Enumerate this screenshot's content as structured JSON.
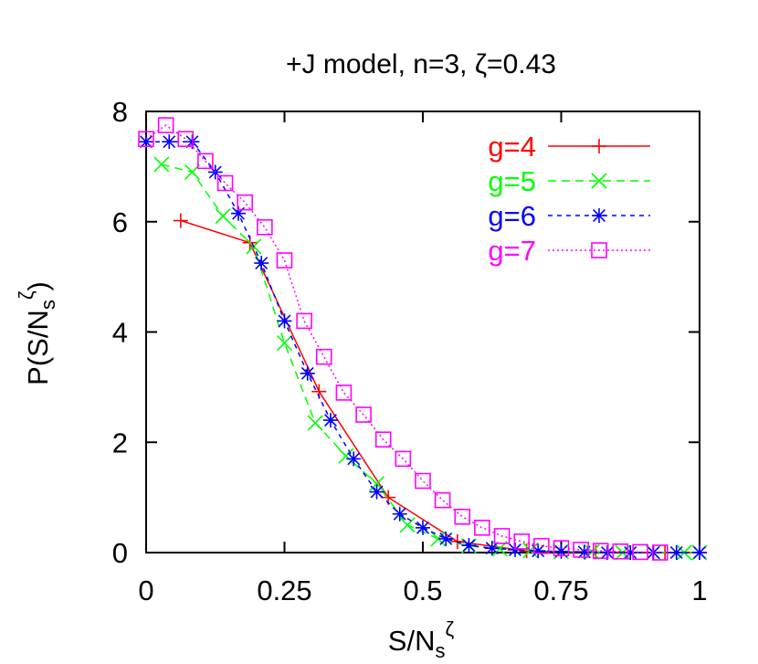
{
  "chart_data": {
    "type": "line",
    "title": "+J model, n=3, ζ=0.43",
    "xlabel": {
      "base": "S/N",
      "sub": "s",
      "sup": "ζ"
    },
    "ylabel": {
      "base": "P(S/N",
      "sub": "s",
      "sup": "ζ",
      "close": ")"
    },
    "xlim": [
      0,
      1
    ],
    "ylim": [
      0,
      8
    ],
    "xticks": [
      0,
      0.25,
      0.5,
      0.75,
      1
    ],
    "xtick_labels": [
      "0",
      "0.25",
      "0.5",
      "0.75",
      "1"
    ],
    "yticks": [
      0,
      2,
      4,
      6,
      8
    ],
    "ytick_labels": [
      "0",
      "2",
      "4",
      "6",
      "8"
    ],
    "grid": false,
    "legend_position": "top-right",
    "series": [
      {
        "name": "g=4",
        "color": "#ff0000",
        "dash": "solid",
        "marker": "plus",
        "x": [
          0.0625,
          0.1875,
          0.3125,
          0.4375,
          0.5625,
          0.6875,
          0.8125,
          0.9375,
          1.0
        ],
        "y": [
          6.02,
          5.62,
          2.92,
          1.0,
          0.2,
          0.03,
          0.01,
          0.0,
          0.0
        ]
      },
      {
        "name": "g=5",
        "color": "#00ff00",
        "dash": "dashed",
        "marker": "x",
        "x": [
          0.0278,
          0.0833,
          0.1389,
          0.1944,
          0.25,
          0.3056,
          0.3611,
          0.4167,
          0.4722,
          0.5278,
          0.5833,
          0.6389,
          0.6944,
          0.75,
          0.8056,
          0.8611,
          0.9167,
          0.9722,
          1.0
        ],
        "y": [
          7.04,
          6.9,
          6.1,
          5.55,
          3.8,
          2.35,
          1.75,
          1.25,
          0.5,
          0.25,
          0.12,
          0.07,
          0.04,
          0.02,
          0.01,
          0.0,
          0.0,
          0.0,
          0.0
        ]
      },
      {
        "name": "g=6",
        "color": "#0000ff",
        "dash": "shortdash",
        "marker": "star",
        "x": [
          0.0,
          0.0417,
          0.0833,
          0.125,
          0.1667,
          0.2083,
          0.25,
          0.2917,
          0.3333,
          0.375,
          0.4167,
          0.4583,
          0.5,
          0.5417,
          0.5833,
          0.625,
          0.6667,
          0.7083,
          0.75,
          0.7917,
          0.8333,
          0.875,
          0.9167,
          0.9583,
          1.0
        ],
        "y": [
          7.45,
          7.45,
          7.45,
          6.9,
          6.15,
          5.25,
          4.2,
          3.25,
          2.4,
          1.7,
          1.1,
          0.7,
          0.45,
          0.25,
          0.13,
          0.08,
          0.05,
          0.03,
          0.02,
          0.01,
          0.0,
          0.0,
          0.0,
          0.0,
          0.0
        ]
      },
      {
        "name": "g=7",
        "color": "#ff00ff",
        "dash": "dotted",
        "marker": "square",
        "x": [
          0.0,
          0.0357,
          0.0714,
          0.1071,
          0.1429,
          0.1786,
          0.2143,
          0.25,
          0.2857,
          0.3214,
          0.3571,
          0.3929,
          0.4286,
          0.4643,
          0.5,
          0.5357,
          0.5714,
          0.6071,
          0.6429,
          0.6786,
          0.7143,
          0.75,
          0.7857,
          0.8214,
          0.8571,
          0.8929,
          0.9286
        ],
        "y": [
          7.5,
          7.75,
          7.5,
          7.1,
          6.7,
          6.35,
          5.9,
          5.3,
          4.2,
          3.55,
          2.9,
          2.5,
          2.05,
          1.7,
          1.3,
          0.95,
          0.65,
          0.45,
          0.3,
          0.2,
          0.12,
          0.08,
          0.05,
          0.03,
          0.02,
          0.01,
          0.0
        ]
      }
    ]
  }
}
